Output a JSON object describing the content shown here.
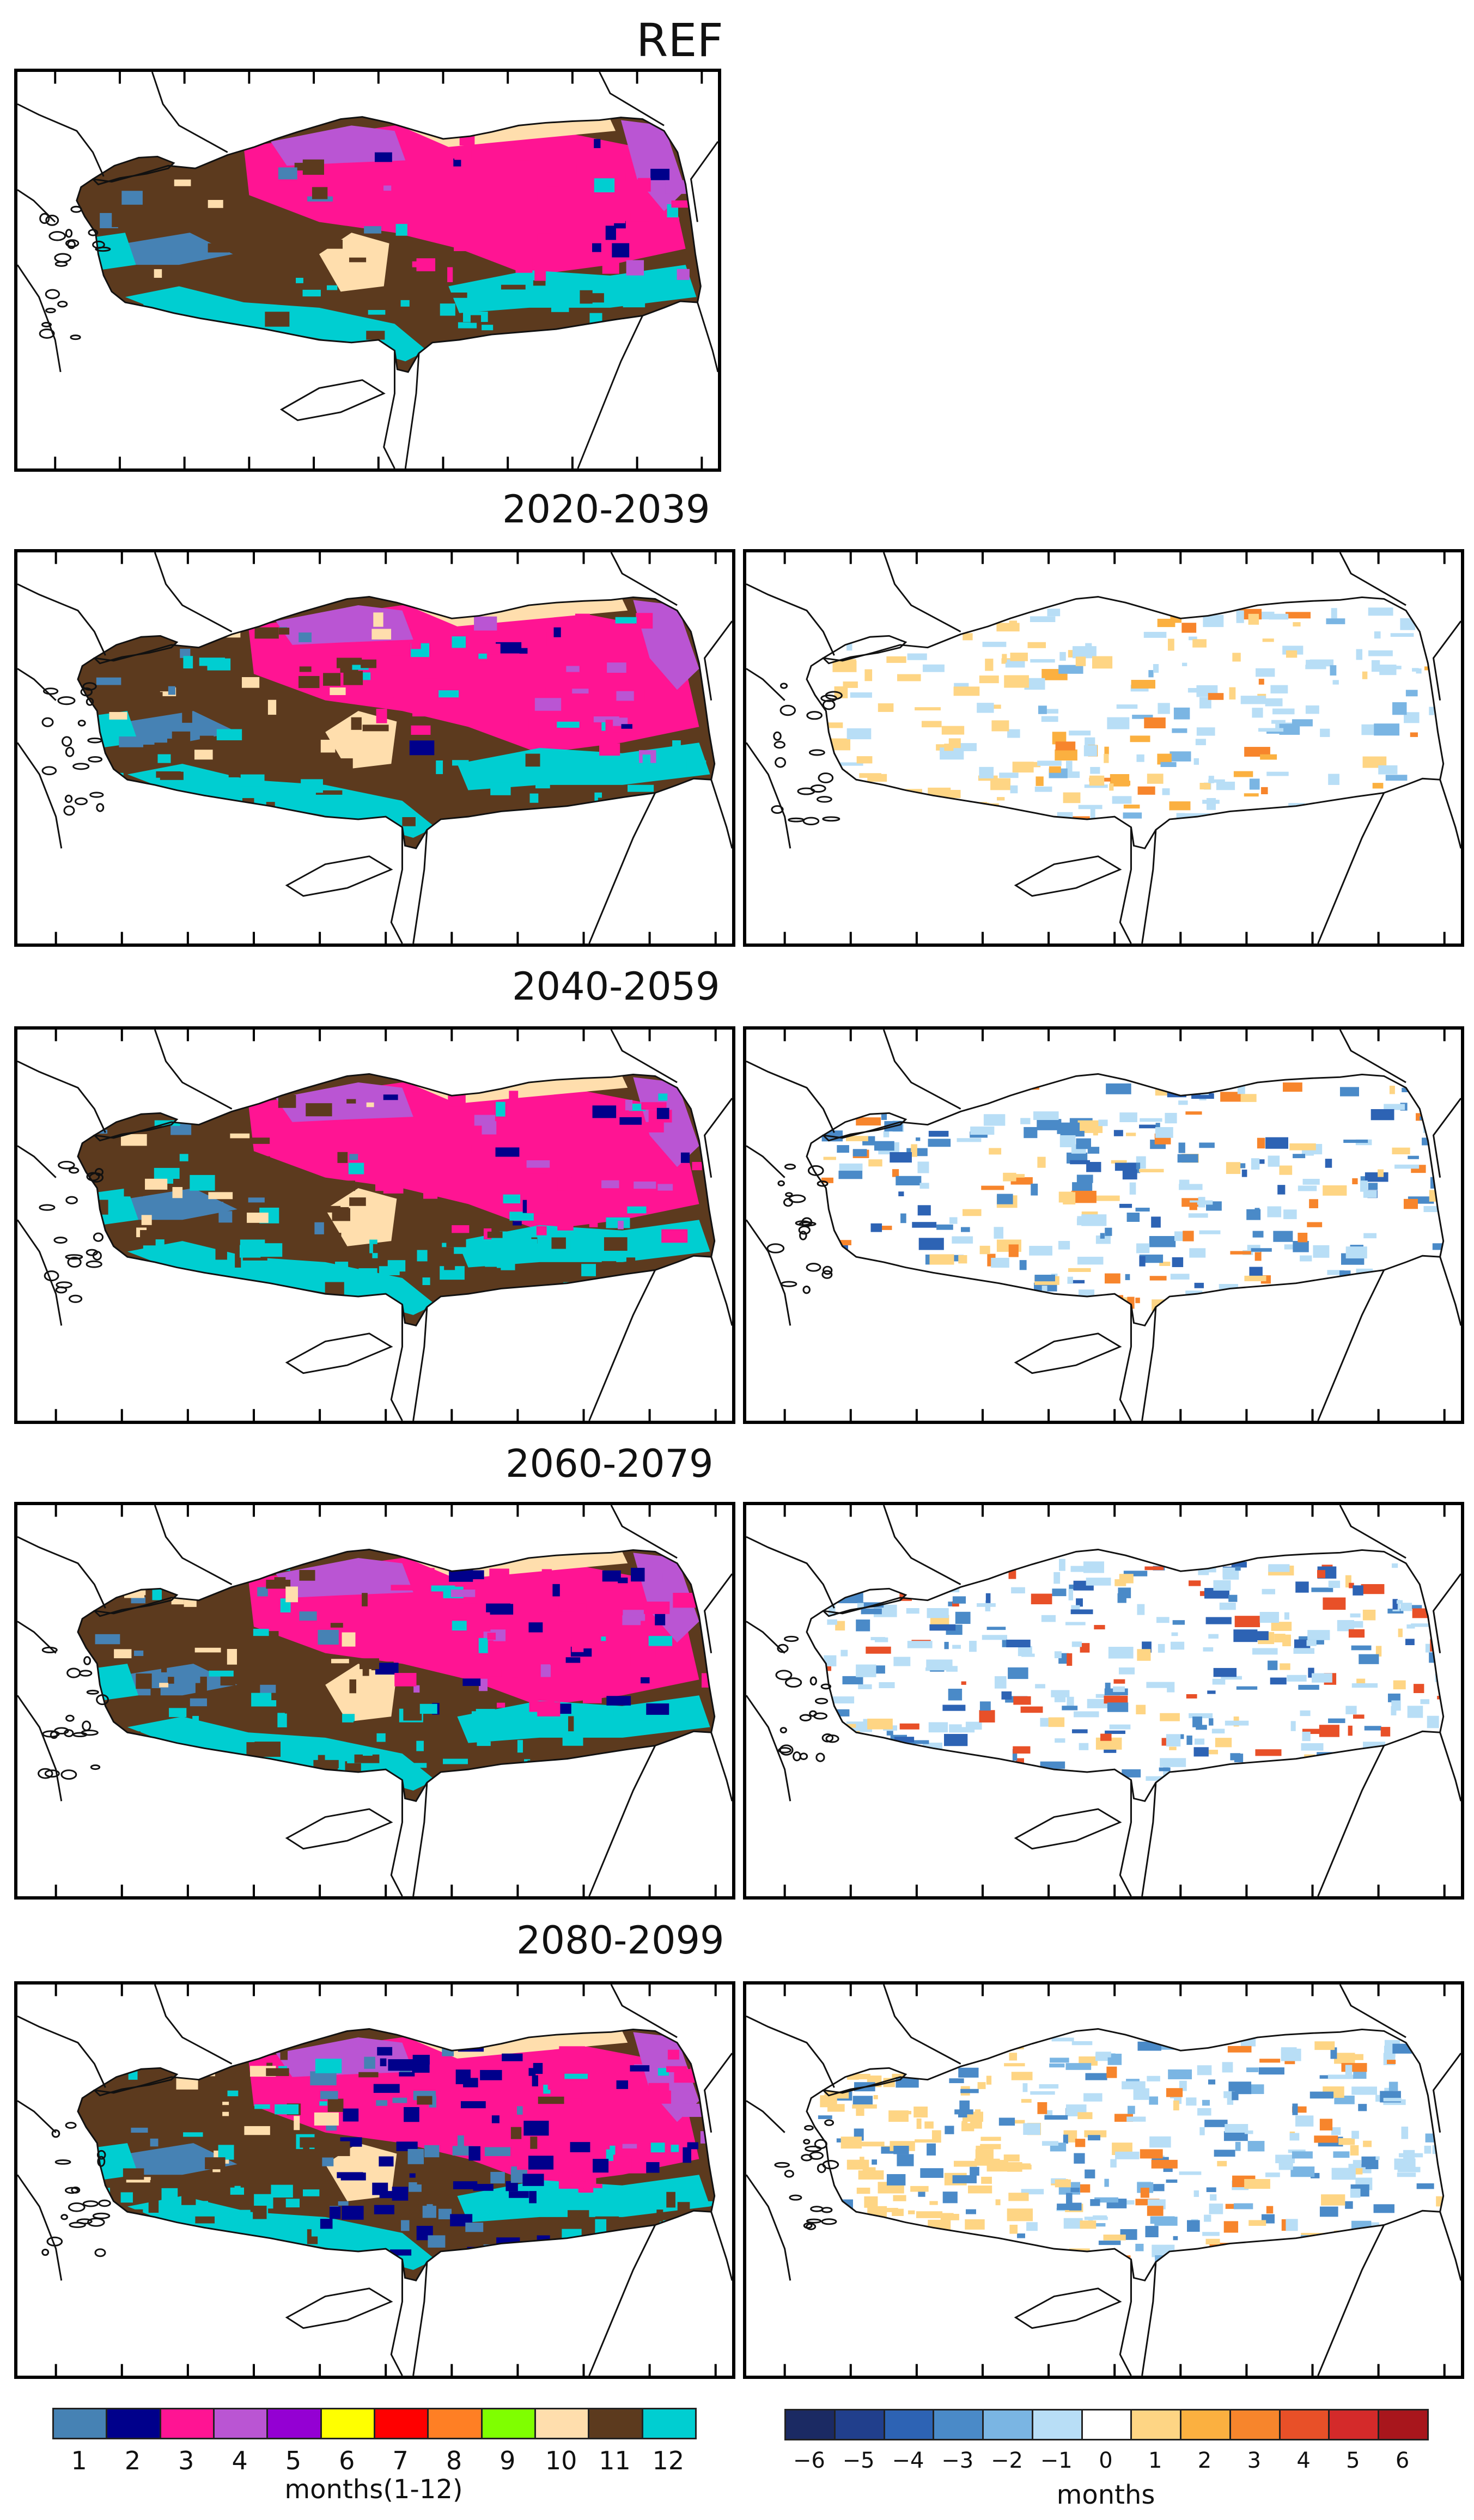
{
  "labels": {
    "ref": "REF",
    "p1": "2020-2039",
    "p2": "2040-2059",
    "p3": "2060-2079",
    "p4": "2080-2099"
  },
  "legend_left": {
    "title": "months(1-12)",
    "items": [
      {
        "label": "1",
        "color": "#4682b4"
      },
      {
        "label": "2",
        "color": "#00008b"
      },
      {
        "label": "3",
        "color": "#ff1493"
      },
      {
        "label": "4",
        "color": "#ba55d3"
      },
      {
        "label": "5",
        "color": "#9400d3"
      },
      {
        "label": "6",
        "color": "#ffff00"
      },
      {
        "label": "7",
        "color": "#ff0000"
      },
      {
        "label": "8",
        "color": "#ff7f24"
      },
      {
        "label": "9",
        "color": "#7fff00"
      },
      {
        "label": "10",
        "color": "#ffdead"
      },
      {
        "label": "11",
        "color": "#5c3a1e"
      },
      {
        "label": "12",
        "color": "#00ced1"
      }
    ]
  },
  "legend_right": {
    "title": "months",
    "ticks": [
      "−6",
      "−5",
      "−4",
      "−3",
      "−2",
      "−1",
      "0",
      "1",
      "2",
      "3",
      "4",
      "5",
      "6"
    ],
    "colors": [
      "#1b2a63",
      "#213f8c",
      "#2d63b4",
      "#4a8ac8",
      "#7ab5e3",
      "#b8def6",
      "#ffffff",
      "#fed584",
      "#fbb040",
      "#f7852c",
      "#e85028",
      "#d42a2a",
      "#a8161c"
    ]
  }
}
